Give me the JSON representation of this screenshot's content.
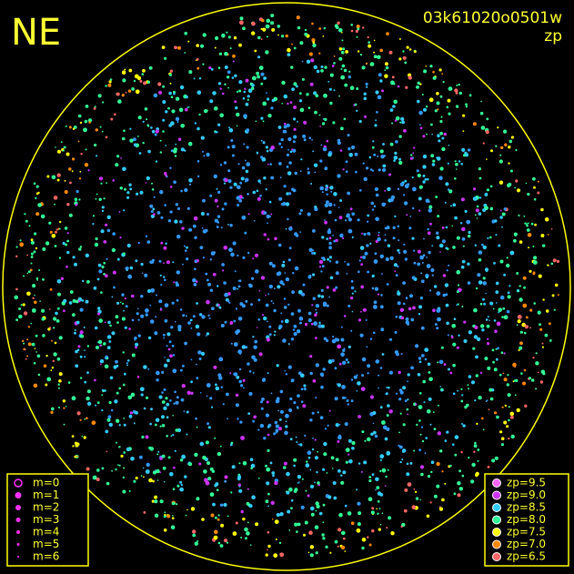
{
  "corner_label": "NE",
  "image_id": "03k61020o0501w",
  "color_key": "zp",
  "magnitude_legend": [
    "m=0",
    "m=1",
    "m=2",
    "m=3",
    "m=4",
    "m=5",
    "m=6"
  ],
  "zp_legend": [
    {
      "label": "zp=9.5",
      "color": "#ff66ff"
    },
    {
      "label": "zp=9.0",
      "color": "#cc33ff"
    },
    {
      "label": "zp=8.5",
      "color": "#33ccff"
    },
    {
      "label": "zp=8.0",
      "color": "#33ff99"
    },
    {
      "label": "zp=7.5",
      "color": "#ffff00"
    },
    {
      "label": "zp=7.0",
      "color": "#ff8800"
    },
    {
      "label": "zp=6.5",
      "color": "#ff6666"
    }
  ]
}
